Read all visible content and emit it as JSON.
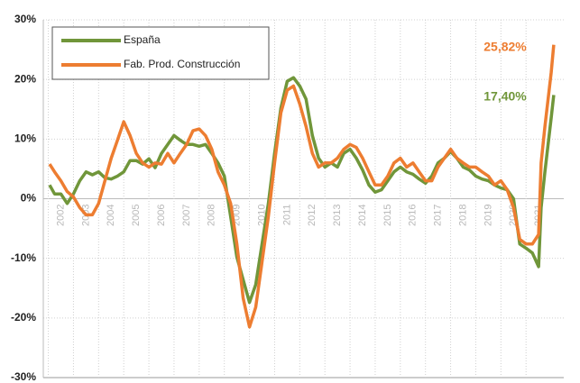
{
  "chart_data": {
    "type": "line",
    "x": [
      2001.55,
      2001.75,
      2002.0,
      2002.25,
      2002.5,
      2002.75,
      2003.0,
      2003.25,
      2003.5,
      2003.75,
      2004.0,
      2004.25,
      2004.5,
      2004.75,
      2005.0,
      2005.25,
      2005.5,
      2005.75,
      2006.0,
      2006.25,
      2006.5,
      2006.75,
      2007.0,
      2007.25,
      2007.5,
      2007.75,
      2008.0,
      2008.25,
      2008.5,
      2008.75,
      2009.0,
      2009.25,
      2009.5,
      2009.75,
      2010.0,
      2010.25,
      2010.5,
      2010.75,
      2011.0,
      2011.25,
      2011.5,
      2011.75,
      2012.0,
      2012.25,
      2012.5,
      2012.75,
      2013.0,
      2013.25,
      2013.5,
      2013.75,
      2014.0,
      2014.25,
      2014.5,
      2014.75,
      2015.0,
      2015.25,
      2015.5,
      2015.75,
      2016.0,
      2016.25,
      2016.5,
      2016.75,
      2017.0,
      2017.25,
      2017.5,
      2017.75,
      2018.0,
      2018.25,
      2018.5,
      2018.75,
      2019.0,
      2019.25,
      2019.5,
      2019.75,
      2020.0,
      2020.25,
      2020.5,
      2020.75,
      2021.0,
      2021.1,
      2021.25,
      2021.5,
      2021.6
    ],
    "series": [
      {
        "name": "España",
        "color": "#70963a",
        "values": [
          2.3,
          0.8,
          0.8,
          -0.8,
          0.8,
          3,
          4.5,
          4,
          4.5,
          3.5,
          3.3,
          3.8,
          4.5,
          6.4,
          6.4,
          5.8,
          6.7,
          5.2,
          7.6,
          9.1,
          10.6,
          9.8,
          9.1,
          9.1,
          8.8,
          9.1,
          7.6,
          6,
          3.8,
          -3,
          -9.8,
          -13.6,
          -17.4,
          -14.4,
          -7.6,
          -0.8,
          7.6,
          15.2,
          19.7,
          20.3,
          18.9,
          16.7,
          10.6,
          6.8,
          5.3,
          6,
          5.3,
          7.6,
          8.3,
          6.8,
          4.8,
          2.3,
          1.1,
          1.5,
          3,
          4.5,
          5.3,
          4.5,
          4.1,
          3.3,
          2.6,
          3.8,
          6,
          6.8,
          7.9,
          6.8,
          5.3,
          4.8,
          3.8,
          3.3,
          3,
          2.3,
          1.8,
          1.5,
          0,
          -7.6,
          -8.3,
          -9.1,
          -11.4,
          -1.5,
          4.5,
          13.6,
          17.4
        ]
      },
      {
        "name": "Fab. Prod. Construcción",
        "color": "#ed7d31",
        "values": [
          5.8,
          4.5,
          3,
          1.2,
          0.3,
          -1.5,
          -2.7,
          -2.7,
          -0.8,
          3,
          6.8,
          9.8,
          12.9,
          10.6,
          7.6,
          6,
          5.3,
          6,
          5.8,
          7.6,
          6,
          7.6,
          9.1,
          11.4,
          11.7,
          10.6,
          8.3,
          4.5,
          2.3,
          -0.8,
          -7.6,
          -16.7,
          -21.5,
          -18.2,
          -10.6,
          -3,
          6,
          14.4,
          18.2,
          18.9,
          15.9,
          12.1,
          7.6,
          5.3,
          6,
          6,
          6.8,
          8.3,
          9.1,
          8.6,
          6.8,
          4.5,
          2.3,
          2.3,
          3.8,
          6,
          6.8,
          5.3,
          6,
          4.5,
          3,
          3,
          5.3,
          6.8,
          8.3,
          6.8,
          6,
          5.3,
          5.3,
          4.5,
          3.8,
          2.3,
          3,
          1.5,
          -1.5,
          -6.8,
          -7.6,
          -7.6,
          -6,
          6,
          12.1,
          21.2,
          25.82
        ]
      }
    ],
    "annotations": [
      {
        "text": "25,82%",
        "value": 25.82,
        "series": 1
      },
      {
        "text": "17,40%",
        "value": 17.4,
        "series": 0
      }
    ],
    "xlim": [
      2001.3,
      2022
    ],
    "xticks": [
      2002,
      2003,
      2004,
      2005,
      2006,
      2007,
      2008,
      2009,
      2010,
      2011,
      2012,
      2013,
      2014,
      2015,
      2016,
      2017,
      2018,
      2019,
      2020,
      2021
    ],
    "ylim": [
      -30,
      30
    ],
    "yticks": [
      {
        "value": -30,
        "label": "-30%"
      },
      {
        "value": -20,
        "label": "-20%"
      },
      {
        "value": -10,
        "label": "-10%"
      },
      {
        "value": 0,
        "label": "0%"
      },
      {
        "value": 10,
        "label": "10%"
      },
      {
        "value": 20,
        "label": "20%"
      },
      {
        "value": 30,
        "label": "30%"
      }
    ],
    "grid": true,
    "legend": "top-left"
  }
}
